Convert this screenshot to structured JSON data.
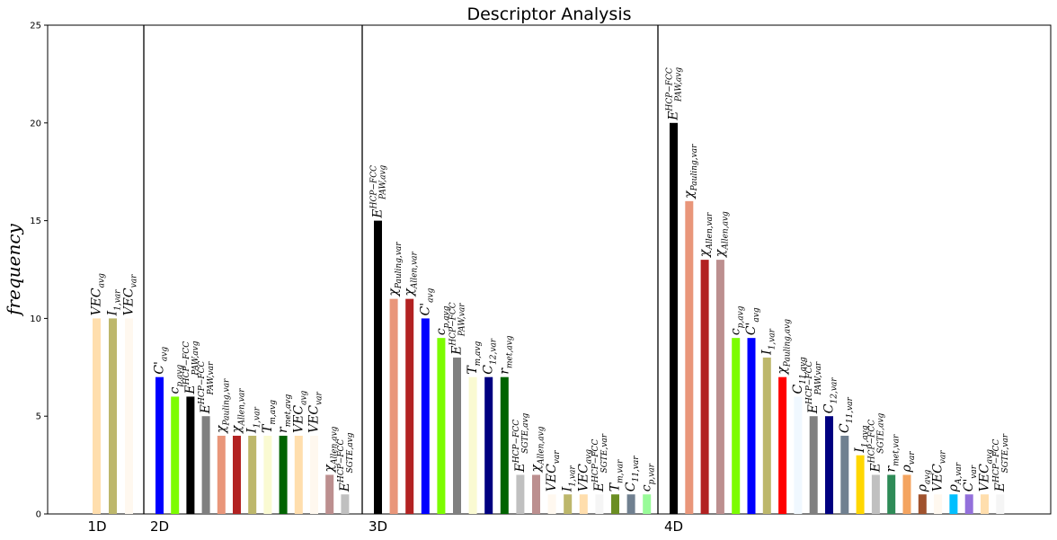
{
  "chart_data": {
    "type": "bar",
    "title": "Descriptor Analysis",
    "ylabel": "frequency",
    "xlabel": "",
    "ylim": [
      0,
      25
    ],
    "yticks": [
      0,
      5,
      10,
      15,
      20,
      25
    ],
    "grid": false,
    "groups": [
      {
        "name": "1D",
        "bars": [
          {
            "label": "VEC_avg",
            "value": 10,
            "color": "#ffdead"
          },
          {
            "label": "I_1,var",
            "value": 10,
            "color": "#bdb76b"
          },
          {
            "label": "VEC_var",
            "value": 10,
            "color": "#fff8ef"
          }
        ]
      },
      {
        "name": "2D",
        "bars": [
          {
            "label": "C'_avg",
            "value": 7,
            "color": "#0000ff"
          },
          {
            "label": "c_p,avg",
            "value": 6,
            "color": "#7cfc00"
          },
          {
            "label": "E^HCP−FCC_PAW,avg",
            "value": 6,
            "color": "#000000"
          },
          {
            "label": "E^HCP−FCC_PAW,var",
            "value": 5,
            "color": "#808080"
          },
          {
            "label": "χ_Pauling,var",
            "value": 4,
            "color": "#e9967a"
          },
          {
            "label": "χ_Allen,var",
            "value": 4,
            "color": "#b22222"
          },
          {
            "label": "I_1,var",
            "value": 4,
            "color": "#bdb76b"
          },
          {
            "label": "T_m,avg",
            "value": 4,
            "color": "#fafad2"
          },
          {
            "label": "r_met,avg",
            "value": 4,
            "color": "#006400"
          },
          {
            "label": "VEC_avg",
            "value": 4,
            "color": "#ffdead"
          },
          {
            "label": "VEC_var",
            "value": 4,
            "color": "#fff8ef"
          },
          {
            "label": "χ_Allen,avg",
            "value": 2,
            "color": "#bc8f8f"
          },
          {
            "label": "E^HCP−FCC_SGTE,avg",
            "value": 1,
            "color": "#c0c0c0"
          }
        ]
      },
      {
        "name": "3D",
        "bars": [
          {
            "label": "E^HCP−FCC_PAW,avg",
            "value": 15,
            "color": "#000000"
          },
          {
            "label": "χ_Pauling,var",
            "value": 11,
            "color": "#e9967a"
          },
          {
            "label": "χ_Allen,var",
            "value": 11,
            "color": "#b22222"
          },
          {
            "label": "C'_avg",
            "value": 10,
            "color": "#0000ff"
          },
          {
            "label": "c_p,avg",
            "value": 9,
            "color": "#7cfc00"
          },
          {
            "label": "E^HCP−FCC_PAW,var",
            "value": 8,
            "color": "#808080"
          },
          {
            "label": "T_m,avg",
            "value": 7,
            "color": "#fafad2"
          },
          {
            "label": "C_12,var",
            "value": 7,
            "color": "#000080"
          },
          {
            "label": "r_met,avg",
            "value": 7,
            "color": "#006400"
          },
          {
            "label": "E^HCP−FCC_SGTE,avg",
            "value": 2,
            "color": "#c0c0c0"
          },
          {
            "label": "χ_Allen,avg",
            "value": 2,
            "color": "#bc8f8f"
          },
          {
            "label": "VEC_var",
            "value": 1,
            "color": "#fff8ef"
          },
          {
            "label": "I_1,var",
            "value": 1,
            "color": "#bdb76b"
          },
          {
            "label": "VEC_avg",
            "value": 1,
            "color": "#ffdead"
          },
          {
            "label": "E^HCP−FCC_SGTE,var",
            "value": 1,
            "color": "#f5f5f5"
          },
          {
            "label": "T_m,var",
            "value": 1,
            "color": "#6b8e23"
          },
          {
            "label": "C_11,var",
            "value": 1,
            "color": "#708090"
          },
          {
            "label": "c_p,var",
            "value": 1,
            "color": "#98fb98"
          }
        ]
      },
      {
        "name": "4D",
        "bars": [
          {
            "label": "E^HCP−FCC_PAW,avg",
            "value": 20,
            "color": "#000000"
          },
          {
            "label": "χ_Pauling,var",
            "value": 16,
            "color": "#e9967a"
          },
          {
            "label": "χ_Allen,var",
            "value": 13,
            "color": "#b22222"
          },
          {
            "label": "χ_Allen,avg",
            "value": 13,
            "color": "#bc8f8f"
          },
          {
            "label": "c_p,avg",
            "value": 9,
            "color": "#7cfc00"
          },
          {
            "label": "C'_avg",
            "value": 9,
            "color": "#0000ff"
          },
          {
            "label": "I_1,var",
            "value": 8,
            "color": "#bdb76b"
          },
          {
            "label": "χ_Pauling,avg",
            "value": 7,
            "color": "#ff0000"
          },
          {
            "label": "C_11,avg",
            "value": 6,
            "color": "#f0f8ff"
          },
          {
            "label": "E^HCP−FCC_PAW,var",
            "value": 5,
            "color": "#808080"
          },
          {
            "label": "C_12,var",
            "value": 5,
            "color": "#000080"
          },
          {
            "label": "C_11,var",
            "value": 4,
            "color": "#708090"
          },
          {
            "label": "I_1,avg",
            "value": 3,
            "color": "#ffd700"
          },
          {
            "label": "E^HCP−FCC_SGTE,avg",
            "value": 2,
            "color": "#c0c0c0"
          },
          {
            "label": "r_met,var",
            "value": 2,
            "color": "#2e8b57"
          },
          {
            "label": "ρ_var",
            "value": 2,
            "color": "#f4a460"
          },
          {
            "label": "ρ_avg",
            "value": 1,
            "color": "#a0522d"
          },
          {
            "label": "VEC_var",
            "value": 1,
            "color": "#fff8ef"
          },
          {
            "label": "ρ_A,var",
            "value": 1,
            "color": "#00bfff"
          },
          {
            "label": "C'_var",
            "value": 1,
            "color": "#9370db"
          },
          {
            "label": "VEC_avg",
            "value": 1,
            "color": "#ffdead"
          },
          {
            "label": "E^HCP−FCC_SGTE,var",
            "value": 1,
            "color": "#f5f5f5"
          }
        ]
      }
    ]
  }
}
